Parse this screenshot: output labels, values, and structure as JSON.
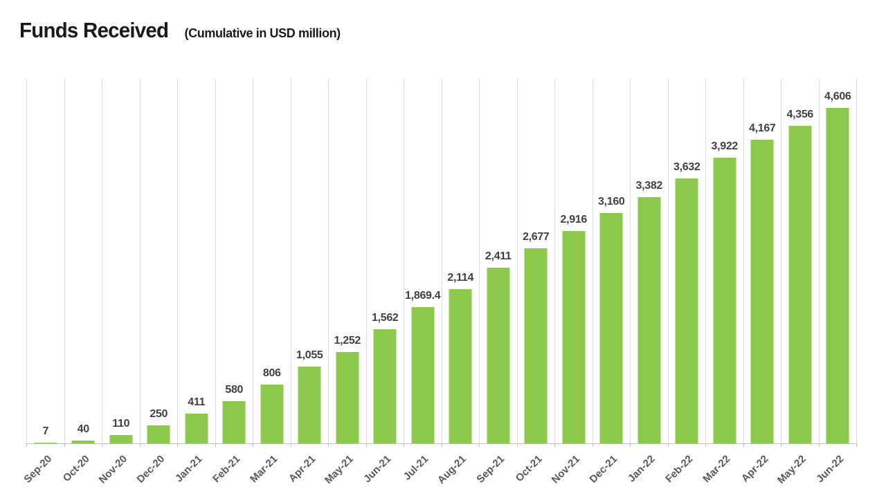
{
  "header": {
    "title": "Funds Received",
    "subtitle": "(Cumulative in USD million)"
  },
  "chart_data": {
    "type": "bar",
    "title": "Funds Received",
    "subtitle": "(Cumulative in USD million)",
    "xlabel": "",
    "ylabel": "",
    "categories": [
      "Sep-20",
      "Oct-20",
      "Nov-20",
      "Dec-20",
      "Jan-21",
      "Feb-21",
      "Mar-21",
      "Apr-21",
      "May-21",
      "Jun-21",
      "Jul-21",
      "Aug-21",
      "Sep-21",
      "Oct-21",
      "Nov-21",
      "Dec-21",
      "Jan-22",
      "Feb-22",
      "Mar-22",
      "Apr-22",
      "May-22",
      "Jun-22"
    ],
    "values": [
      7,
      40,
      110,
      250,
      411,
      580,
      806,
      1055,
      1252,
      1562,
      1869.4,
      2114,
      2411,
      2677,
      2916,
      3160,
      3382,
      3632,
      3922,
      4167,
      4356,
      4606
    ],
    "value_labels": [
      "7",
      "40",
      "110",
      "250",
      "411",
      "580",
      "806",
      "1,055",
      "1,252",
      "1,562",
      "1,869.4",
      "2,114",
      "2,411",
      "2,677",
      "2,916",
      "3,160",
      "3,382",
      "3,632",
      "3,922",
      "4,167",
      "4,356",
      "4,606"
    ],
    "ylim": [
      0,
      5000
    ],
    "grid": "vertical-category-separators",
    "legend": "none",
    "colors": {
      "bar": "#8dc94c",
      "value_label": "#404040",
      "tick_label": "#595959",
      "gridline": "#d9d9d9",
      "axis": "#bfbfbf",
      "title": "#1a1a1a"
    }
  }
}
